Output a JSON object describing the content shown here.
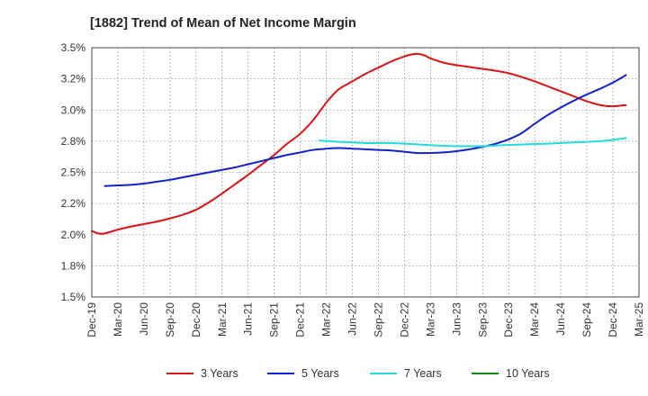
{
  "chart_data": {
    "type": "line",
    "title": "[1882]  Trend of Mean of Net Income Margin",
    "xlabel": "",
    "ylabel": "",
    "x_ticks": [
      "Dec-19",
      "Mar-20",
      "Jun-20",
      "Sep-20",
      "Dec-20",
      "Mar-21",
      "Jun-21",
      "Sep-21",
      "Dec-21",
      "Mar-22",
      "Jun-22",
      "Sep-22",
      "Dec-22",
      "Mar-23",
      "Jun-23",
      "Sep-23",
      "Dec-23",
      "Mar-24",
      "Jun-24",
      "Sep-24",
      "Dec-24",
      "Mar-25"
    ],
    "y_ticks": [
      "1.5%",
      "1.8%",
      "2.0%",
      "2.2%",
      "2.5%",
      "2.8%",
      "3.0%",
      "3.2%",
      "3.5%"
    ],
    "ylim": [
      1.5,
      3.5
    ],
    "grid": true,
    "legend_position": "bottom",
    "series": [
      {
        "name": "3 Years",
        "color": "#dd1111",
        "points": [
          [
            0.0,
            2.03
          ],
          [
            0.25,
            2.01
          ],
          [
            0.5,
            2.01
          ],
          [
            1.0,
            2.04
          ],
          [
            1.5,
            2.065
          ],
          [
            2.0,
            2.085
          ],
          [
            2.5,
            2.105
          ],
          [
            3.0,
            2.13
          ],
          [
            3.5,
            2.16
          ],
          [
            4.0,
            2.2
          ],
          [
            4.5,
            2.26
          ],
          [
            5.0,
            2.33
          ],
          [
            5.5,
            2.405
          ],
          [
            6.0,
            2.48
          ],
          [
            6.5,
            2.56
          ],
          [
            7.0,
            2.64
          ],
          [
            7.5,
            2.73
          ],
          [
            8.0,
            2.81
          ],
          [
            8.5,
            2.92
          ],
          [
            9.0,
            3.06
          ],
          [
            9.25,
            3.12
          ],
          [
            9.5,
            3.17
          ],
          [
            10.0,
            3.23
          ],
          [
            10.5,
            3.29
          ],
          [
            11.0,
            3.34
          ],
          [
            11.5,
            3.39
          ],
          [
            12.0,
            3.43
          ],
          [
            12.25,
            3.445
          ],
          [
            12.5,
            3.45
          ],
          [
            12.75,
            3.44
          ],
          [
            13.0,
            3.415
          ],
          [
            13.5,
            3.38
          ],
          [
            14.0,
            3.36
          ],
          [
            14.5,
            3.345
          ],
          [
            15.0,
            3.33
          ],
          [
            15.5,
            3.315
          ],
          [
            16.0,
            3.295
          ],
          [
            16.5,
            3.265
          ],
          [
            17.0,
            3.23
          ],
          [
            17.5,
            3.19
          ],
          [
            18.0,
            3.15
          ],
          [
            18.5,
            3.11
          ],
          [
            19.0,
            3.07
          ],
          [
            19.5,
            3.04
          ],
          [
            20.0,
            3.03
          ],
          [
            20.5,
            3.04
          ]
        ]
      },
      {
        "name": "5 Years",
        "color": "#1122cc",
        "points": [
          [
            0.5,
            2.39
          ],
          [
            1.0,
            2.395
          ],
          [
            1.5,
            2.4
          ],
          [
            2.0,
            2.41
          ],
          [
            2.5,
            2.425
          ],
          [
            3.0,
            2.44
          ],
          [
            3.5,
            2.46
          ],
          [
            4.0,
            2.48
          ],
          [
            4.5,
            2.5
          ],
          [
            5.0,
            2.52
          ],
          [
            5.5,
            2.54
          ],
          [
            6.0,
            2.565
          ],
          [
            6.5,
            2.59
          ],
          [
            7.0,
            2.615
          ],
          [
            7.5,
            2.64
          ],
          [
            8.0,
            2.66
          ],
          [
            8.5,
            2.68
          ],
          [
            9.0,
            2.69
          ],
          [
            9.5,
            2.695
          ],
          [
            10.0,
            2.69
          ],
          [
            10.5,
            2.685
          ],
          [
            11.0,
            2.68
          ],
          [
            11.5,
            2.675
          ],
          [
            12.0,
            2.665
          ],
          [
            12.5,
            2.655
          ],
          [
            13.0,
            2.655
          ],
          [
            13.5,
            2.66
          ],
          [
            14.0,
            2.67
          ],
          [
            14.5,
            2.685
          ],
          [
            15.0,
            2.705
          ],
          [
            15.5,
            2.73
          ],
          [
            16.0,
            2.765
          ],
          [
            16.5,
            2.815
          ],
          [
            17.0,
            2.89
          ],
          [
            17.5,
            2.96
          ],
          [
            18.0,
            3.02
          ],
          [
            18.5,
            3.075
          ],
          [
            19.0,
            3.125
          ],
          [
            19.5,
            3.17
          ],
          [
            20.0,
            3.22
          ],
          [
            20.5,
            3.28
          ]
        ]
      },
      {
        "name": "7 Years",
        "color": "#22dddd",
        "points": [
          [
            8.75,
            2.755
          ],
          [
            9.5,
            2.745
          ],
          [
            10.0,
            2.74
          ],
          [
            10.5,
            2.735
          ],
          [
            11.0,
            2.735
          ],
          [
            11.5,
            2.735
          ],
          [
            12.0,
            2.73
          ],
          [
            12.5,
            2.725
          ],
          [
            13.0,
            2.718
          ],
          [
            13.5,
            2.713
          ],
          [
            14.0,
            2.71
          ],
          [
            14.5,
            2.71
          ],
          [
            15.0,
            2.71
          ],
          [
            15.5,
            2.715
          ],
          [
            16.0,
            2.72
          ],
          [
            16.5,
            2.723
          ],
          [
            17.0,
            2.727
          ],
          [
            17.5,
            2.73
          ],
          [
            18.0,
            2.735
          ],
          [
            18.5,
            2.74
          ],
          [
            19.0,
            2.745
          ],
          [
            19.5,
            2.75
          ],
          [
            20.0,
            2.76
          ],
          [
            20.5,
            2.775
          ]
        ]
      },
      {
        "name": "10 Years",
        "color": "#118811",
        "points": []
      }
    ]
  }
}
